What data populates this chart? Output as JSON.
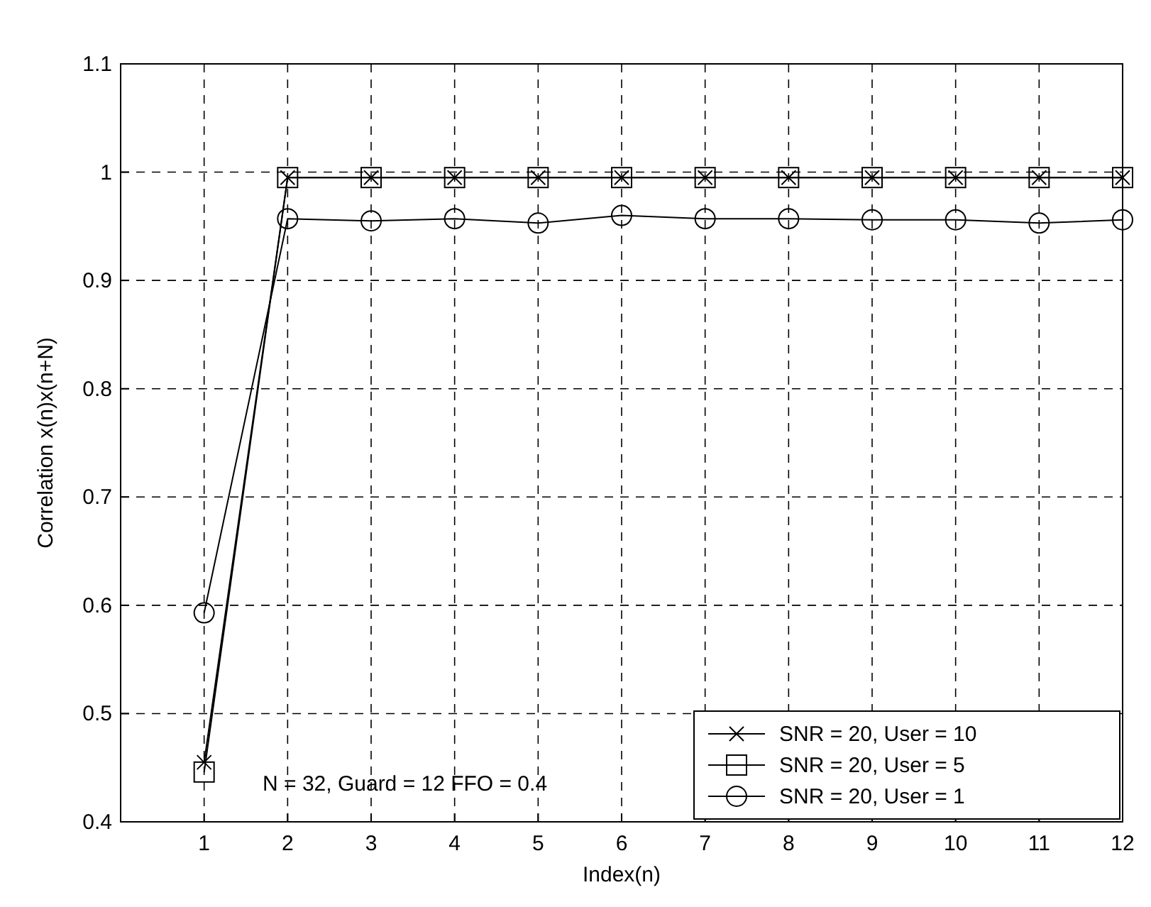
{
  "chart_data": {
    "type": "line",
    "xlabel": "Index(n)",
    "ylabel": "Correlation x(n)x(n+N)",
    "x": [
      1,
      2,
      3,
      4,
      5,
      6,
      7,
      8,
      9,
      10,
      11,
      12
    ],
    "series": [
      {
        "name": "SNR = 20, User = 10",
        "color": "#000000",
        "marker": "cross",
        "values": [
          0.455,
          0.995,
          0.995,
          0.995,
          0.995,
          0.995,
          0.995,
          0.995,
          0.995,
          0.995,
          0.995,
          0.995
        ]
      },
      {
        "name": "SNR = 20, User = 5",
        "color": "#000000",
        "marker": "square",
        "values": [
          0.446,
          0.995,
          0.995,
          0.995,
          0.995,
          0.995,
          0.995,
          0.995,
          0.995,
          0.995,
          0.995,
          0.995
        ]
      },
      {
        "name": "SNR = 20, User = 1",
        "color": "#000000",
        "marker": "circle",
        "values": [
          0.593,
          0.957,
          0.955,
          0.957,
          0.953,
          0.96,
          0.957,
          0.957,
          0.956,
          0.956,
          0.953,
          0.956
        ]
      }
    ],
    "xlim": [
      0,
      12
    ],
    "xticks": [
      1,
      2,
      3,
      4,
      5,
      6,
      7,
      8,
      9,
      10,
      11,
      12
    ],
    "ylim": [
      0.4,
      1.1
    ],
    "yticks": [
      0.4,
      0.5,
      0.6,
      0.7,
      0.8,
      0.9,
      1,
      1.1
    ],
    "grid": true,
    "legend": "bottom right",
    "line_style": "solid",
    "annotations": [
      "N = 32, Guard = 12 FFO = 0.4"
    ]
  }
}
